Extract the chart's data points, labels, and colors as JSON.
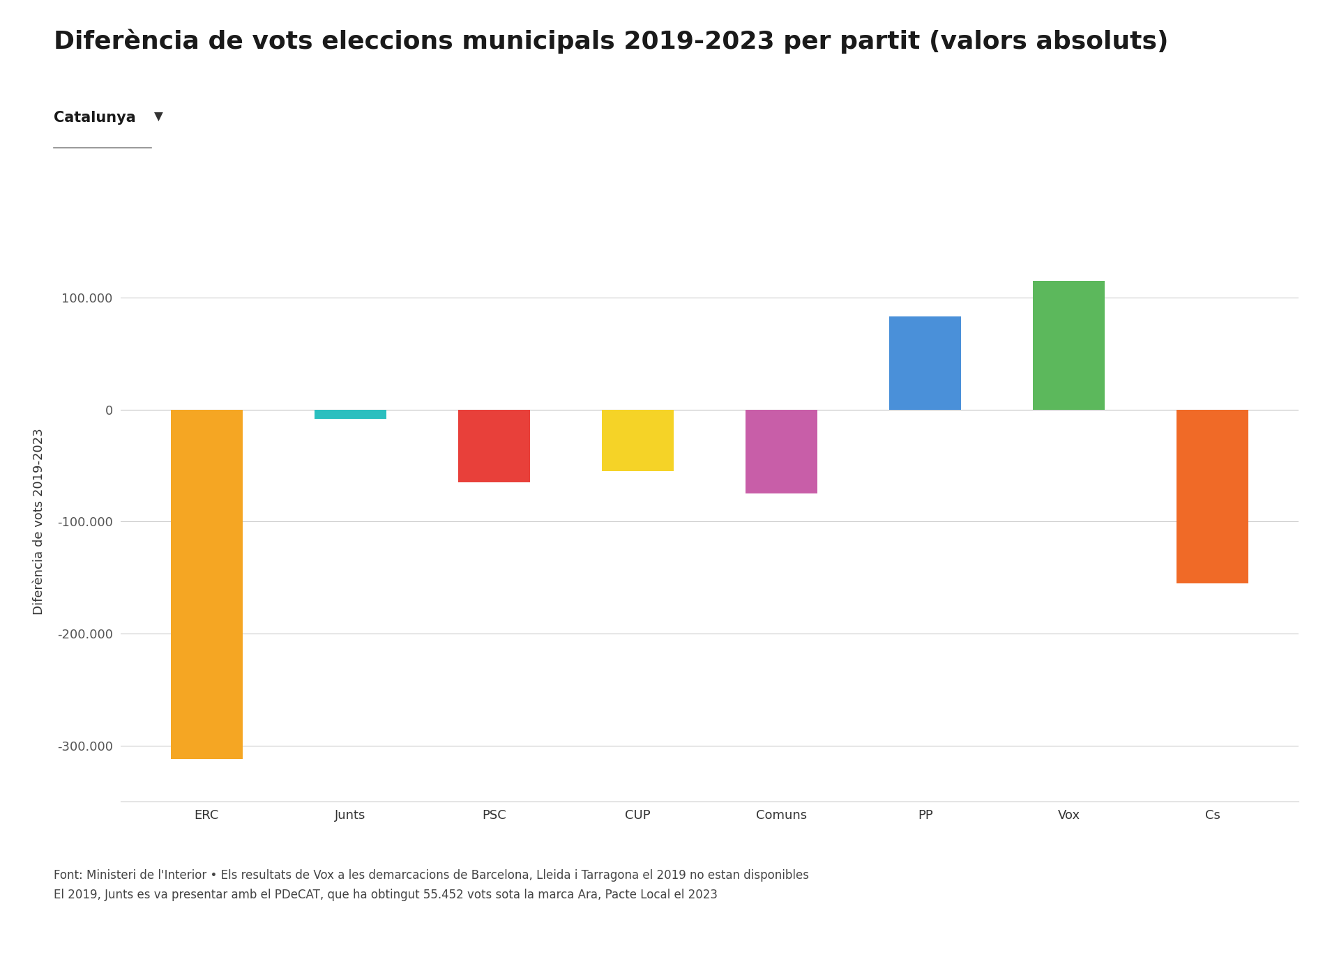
{
  "title": "Diferència de vots eleccions municipals 2019-2023 per partit (valors absoluts)",
  "subtitle": "Catalunya",
  "ylabel": "Diferència de vots 2019-2023",
  "categories": [
    "ERC",
    "Junts",
    "PSC",
    "CUP",
    "Comuns",
    "PP",
    "Vox",
    "Cs"
  ],
  "values": [
    -312000,
    -8000,
    -65000,
    -55000,
    -75000,
    83000,
    115000,
    -155000
  ],
  "colors": [
    "#F5A623",
    "#2BBFBF",
    "#E8403A",
    "#F5D327",
    "#C85EA8",
    "#4A90D9",
    "#5CB85C",
    "#F06A27"
  ],
  "ylim": [
    -350000,
    150000
  ],
  "yticks": [
    -300000,
    -200000,
    -100000,
    0,
    100000
  ],
  "ytick_labels": [
    "-300.000",
    "-200.000",
    "-100.000",
    "0",
    "100.000"
  ],
  "footnote_line1": "Font: Ministeri de l'Interior • Els resultats de Vox a les demarcacions de Barcelona, Lleida i Tarragona el 2019 no estan disponibles",
  "footnote_line2": "El 2019, Junts es va presentar amb el PDeCAT, que ha obtingut 55.452 vots sota la marca Ara, Pacte Local el 2023",
  "background_color": "#ffffff",
  "grid_color": "#cccccc",
  "title_fontsize": 26,
  "axis_label_fontsize": 13,
  "tick_fontsize": 13,
  "footnote_fontsize": 12,
  "subtitle_fontsize": 15,
  "bar_width": 0.5
}
